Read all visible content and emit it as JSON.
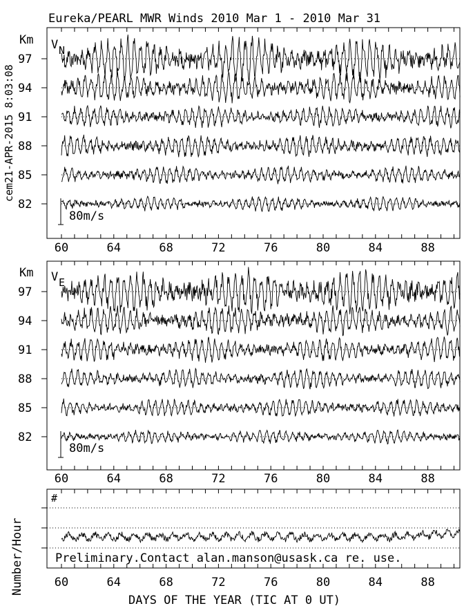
{
  "chart_data": [
    {
      "type": "line",
      "title": "Eureka/PEARL MWR Winds 2010 Mar  1 - 2010 Mar 31",
      "side_label": "cem21-APR-2015  8:03:08",
      "panel_label": "V",
      "panel_subscript": "N",
      "ylabel": "Km",
      "heights_km": [
        97,
        94,
        91,
        88,
        85,
        82
      ],
      "scale_label": "80m/s",
      "x_ticks": [
        60,
        64,
        68,
        72,
        76,
        80,
        84,
        88
      ],
      "xlim": [
        60,
        90.5
      ],
      "amplitude_ms": [
        45,
        30,
        22,
        22,
        18,
        15
      ]
    },
    {
      "type": "line",
      "panel_label": "V",
      "panel_subscript": "E",
      "ylabel": "Km",
      "heights_km": [
        97,
        94,
        91,
        88,
        85,
        82
      ],
      "scale_label": "80m/s",
      "x_ticks": [
        60,
        64,
        68,
        72,
        76,
        80,
        84,
        88
      ],
      "xlim": [
        60,
        90.5
      ],
      "amplitude_ms": [
        45,
        30,
        24,
        20,
        18,
        14
      ]
    },
    {
      "type": "line",
      "panel_label": "#",
      "ylabel": "Number/Hour",
      "note": "Preliminary.Contact alan.manson@usask.ca re. use.",
      "xlabel": "DAYS OF THE YEAR (TIC AT 0 UT)",
      "x_ticks": [
        60,
        64,
        68,
        72,
        76,
        80,
        84,
        88
      ],
      "xlim": [
        60,
        90.5
      ]
    }
  ]
}
